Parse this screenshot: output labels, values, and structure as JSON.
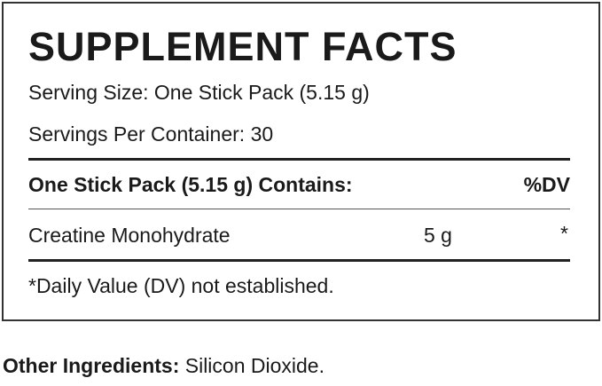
{
  "title": "SUPPLEMENT FACTS",
  "serving_size": "Serving Size: One Stick Pack (5.15 g)",
  "servings_per_container": "Servings Per Container: 30",
  "table": {
    "header": {
      "label": "One Stick Pack (5.15 g) Contains:",
      "dv": "%DV"
    },
    "rows": [
      {
        "name": "Creatine Monohydrate",
        "amount": "5 g",
        "dv": "*"
      }
    ]
  },
  "footnote": "*Daily Value (DV) not established.",
  "other_ingredients": {
    "label": "Other Ingredients:",
    "value": " Silicon Dioxide."
  }
}
